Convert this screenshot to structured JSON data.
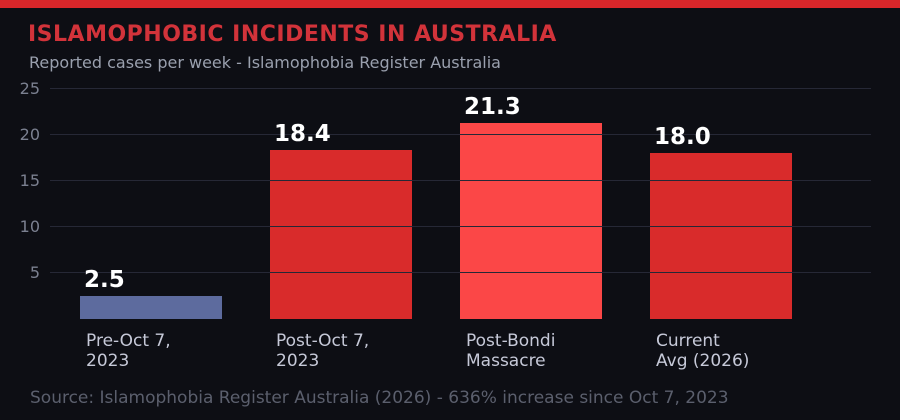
{
  "page": {
    "background_color": "#0d0e14",
    "accent_color": "#d8262a",
    "title_color": "#d2333a",
    "gridline_color": "#262836"
  },
  "header": {
    "title": "ISLAMOPHOBIC INCIDENTS IN AUSTRALIA",
    "subtitle": "Reported cases per week - Islamophobia Register Australia"
  },
  "chart_data": {
    "type": "bar",
    "categories": [
      "Pre-Oct 7,\n2023",
      "Post-Oct 7,\n2023",
      "Post-Bondi\nMassacre",
      "Current\nAvg (2026)"
    ],
    "values": [
      2.5,
      18.4,
      21.3,
      18.0
    ],
    "value_labels": [
      "2.5",
      "18.4",
      "21.3",
      "18.0"
    ],
    "bar_colors": [
      "#5d6b9e",
      "#d92b2b",
      "#fb4747",
      "#d92b2b"
    ],
    "title": "ISLAMOPHOBIC INCIDENTS IN AUSTRALIA",
    "subtitle": "Reported cases per week - Islamophobia Register Australia",
    "xlabel": "",
    "ylabel": "",
    "ylim": [
      0,
      25
    ],
    "yticks": [
      5,
      10,
      15,
      20,
      25
    ],
    "grid": true,
    "legend": false,
    "value_label_color": "#ffffff",
    "tick_label_color": "#7b8090",
    "category_label_color": "#c6c9d8"
  },
  "footer": {
    "source": "Source: Islamophobia Register Australia (2026) - 636% increase since Oct 7, 2023"
  }
}
